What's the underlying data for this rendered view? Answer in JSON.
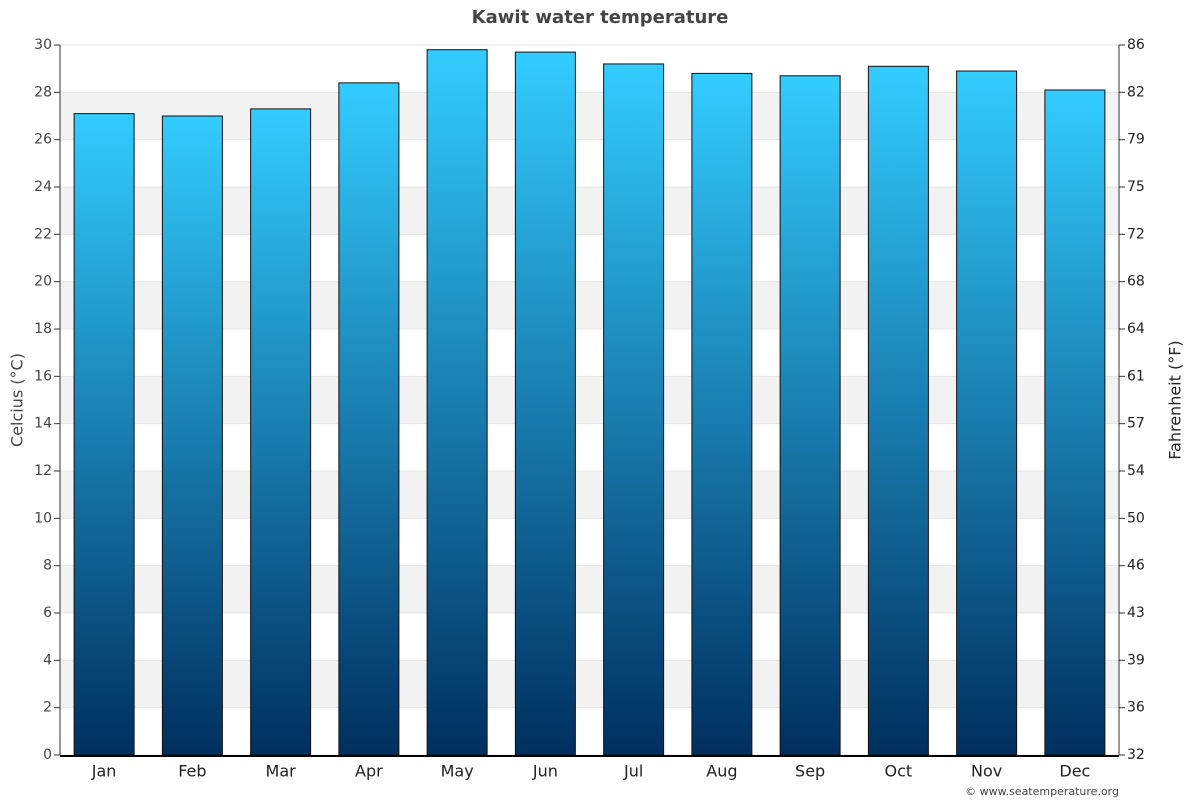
{
  "chart_data": {
    "type": "bar",
    "title": "Kawit water temperature",
    "categories": [
      "Jan",
      "Feb",
      "Mar",
      "Apr",
      "May",
      "Jun",
      "Jul",
      "Aug",
      "Sep",
      "Oct",
      "Nov",
      "Dec"
    ],
    "values": [
      27.1,
      27.0,
      27.3,
      28.4,
      29.8,
      29.7,
      29.2,
      28.8,
      28.7,
      29.1,
      28.9,
      28.1
    ],
    "gradient": [
      "#33ccff",
      "#002f5f"
    ],
    "y_label": "Celcius (°C)",
    "y2_label": "Fahrenheit (°F)",
    "ylim": [
      0,
      30
    ],
    "yticks": [
      0,
      2,
      4,
      6,
      8,
      10,
      12,
      14,
      16,
      18,
      20,
      22,
      24,
      26,
      28,
      30
    ],
    "y2lim": [
      32,
      86
    ],
    "y2ticks": [
      32,
      {
        "value": 35.6,
        "label": "36"
      },
      {
        "value": 39.2,
        "label": "39"
      },
      {
        "value": 42.8,
        "label": "43"
      },
      {
        "value": 46.4,
        "label": "46"
      },
      50,
      {
        "value": 53.6,
        "label": "54"
      },
      {
        "value": 57.2,
        "label": "57"
      },
      {
        "value": 60.8,
        "label": "61"
      },
      {
        "value": 64.4,
        "label": "64"
      },
      68,
      {
        "value": 71.6,
        "label": "72"
      },
      {
        "value": 75.2,
        "label": "75"
      },
      {
        "value": 78.8,
        "label": "79"
      },
      {
        "value": 82.4,
        "label": "82"
      },
      86
    ],
    "grid": true,
    "source": "© www.seatemperature.org"
  }
}
